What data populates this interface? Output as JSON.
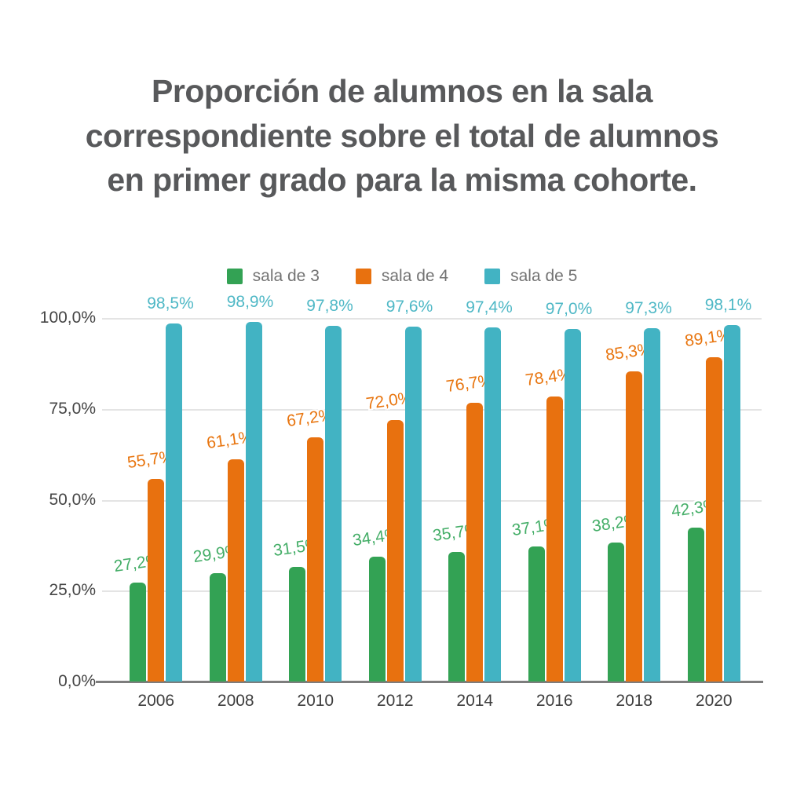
{
  "page": {
    "background": "#ffffff"
  },
  "title": {
    "text": "Proporción de alumnos en la sala\ncorrespondiente sobre el total de alumnos\nen primer grado para la misma cohorte.",
    "color": "#58595b"
  },
  "chart_data": {
    "type": "bar",
    "title": "Proporción de alumnos en la sala correspondiente sobre el total de alumnos en primer grado para la misma cohorte.",
    "categories": [
      "2006",
      "2008",
      "2010",
      "2012",
      "2014",
      "2016",
      "2018",
      "2020"
    ],
    "series": [
      {
        "name": "sala de 3",
        "color": "#33a254",
        "label_color": "#45ae68",
        "values": [
          27.2,
          29.9,
          31.5,
          34.4,
          35.7,
          37.1,
          38.2,
          42.3
        ],
        "labels": [
          "27,2%",
          "29,9%",
          "31,5%",
          "34,4%",
          "35,7%",
          "37,1%",
          "38,2%",
          "42,3%"
        ]
      },
      {
        "name": "sala de 4",
        "color": "#e8710f",
        "label_color": "#e8750f",
        "values": [
          55.7,
          61.1,
          67.2,
          72.0,
          76.7,
          78.4,
          85.3,
          89.1
        ],
        "labels": [
          "55,7%",
          "61,1%",
          "67,2%",
          "72,0%",
          "76,7%",
          "78,4%",
          "85,3%",
          "89,1%"
        ]
      },
      {
        "name": "sala de 5",
        "color": "#42b3c3",
        "label_color": "#4fb8c6",
        "values": [
          98.5,
          98.9,
          97.8,
          97.6,
          97.4,
          97.0,
          97.3,
          98.1
        ],
        "labels": [
          "98,5%",
          "98,9%",
          "97,8%",
          "97,6%",
          "97,4%",
          "97,0%",
          "97,3%",
          "98,1%"
        ]
      }
    ],
    "xlabel": "",
    "ylabel": "",
    "ylim": [
      0,
      100
    ],
    "y_ticks_top_to_bottom": [
      "100,0%",
      "75,0%",
      "50,0%",
      "25,0%",
      "0,0%"
    ],
    "grid": true,
    "legend_position": "top",
    "axis_colors": {
      "gridline": "#e4e4e4",
      "axis_line": "#7d7d7d",
      "tick_text": "#454545"
    }
  }
}
